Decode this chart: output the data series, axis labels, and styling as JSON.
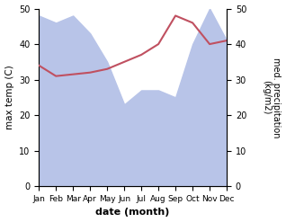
{
  "months": [
    "Jan",
    "Feb",
    "Mar",
    "Apr",
    "May",
    "Jun",
    "Jul",
    "Aug",
    "Sep",
    "Oct",
    "Nov",
    "Dec"
  ],
  "max_temp": [
    34,
    31,
    31.5,
    32,
    33,
    35,
    37,
    40,
    48,
    46,
    40,
    41
  ],
  "precipitation": [
    48,
    46,
    48,
    43,
    35,
    23,
    27,
    27,
    25,
    40,
    50,
    41
  ],
  "temp_color": "#c05060",
  "precip_fill_color": "#b8c4e8",
  "ylim": [
    0,
    50
  ],
  "xlabel": "date (month)",
  "ylabel_left": "max temp (C)",
  "ylabel_right": "med. precipitation\n(kg/m2)",
  "background_color": "#ffffff"
}
